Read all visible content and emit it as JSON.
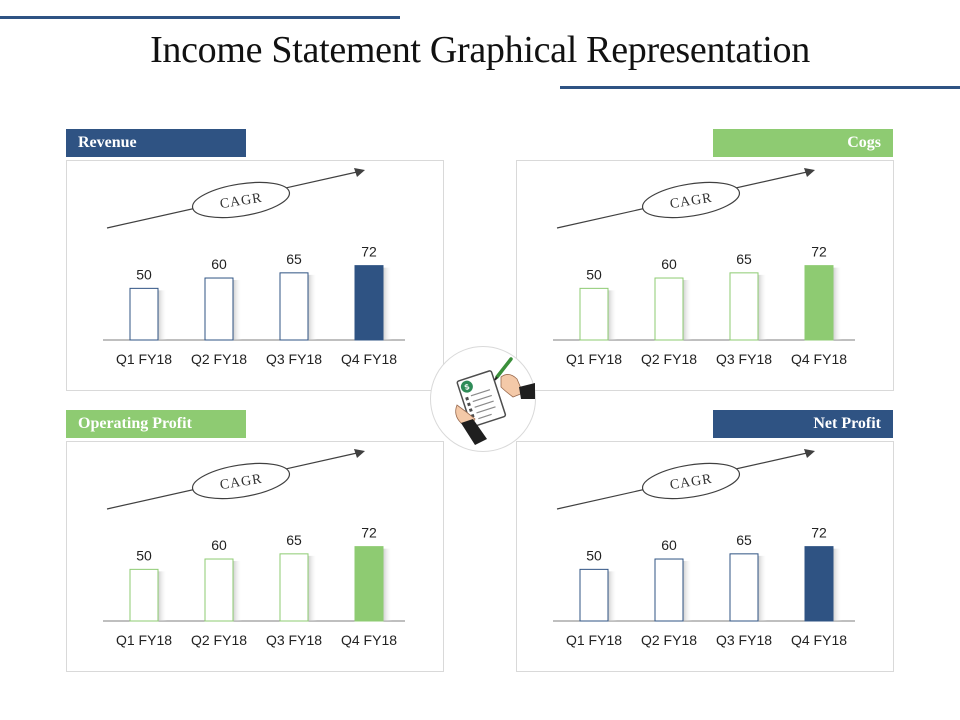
{
  "title": "Income Statement Graphical Representation",
  "colors": {
    "blue": "#2f5383",
    "green": "#8ecb72"
  },
  "panels": [
    {
      "label": "Revenue",
      "label_color": "#2f5383",
      "label_side": "left",
      "accent": "#2f5383",
      "chart_data": {
        "type": "bar",
        "categories": [
          "Q1 FY18",
          "Q2 FY18",
          "Q3 FY18",
          "Q4 FY18"
        ],
        "values": [
          50,
          60,
          65,
          72
        ],
        "annotation": "CAGR",
        "highlight_last": true
      }
    },
    {
      "label": "Cogs",
      "label_color": "#8ecb72",
      "label_side": "right",
      "accent": "#8ecb72",
      "chart_data": {
        "type": "bar",
        "categories": [
          "Q1 FY18",
          "Q2 FY18",
          "Q3 FY18",
          "Q4 FY18"
        ],
        "values": [
          50,
          60,
          65,
          72
        ],
        "annotation": "CAGR",
        "highlight_last": true
      }
    },
    {
      "label": "Operating Profit",
      "label_color": "#8ecb72",
      "label_side": "left",
      "accent": "#8ecb72",
      "chart_data": {
        "type": "bar",
        "categories": [
          "Q1 FY18",
          "Q2 FY18",
          "Q3 FY18",
          "Q4 FY18"
        ],
        "values": [
          50,
          60,
          65,
          72
        ],
        "annotation": "CAGR",
        "highlight_last": true
      }
    },
    {
      "label": "Net Profit",
      "label_color": "#2f5383",
      "label_side": "right",
      "accent": "#2f5383",
      "chart_data": {
        "type": "bar",
        "categories": [
          "Q1 FY18",
          "Q2 FY18",
          "Q3 FY18",
          "Q4 FY18"
        ],
        "values": [
          50,
          60,
          65,
          72
        ],
        "annotation": "CAGR",
        "highlight_last": true
      }
    }
  ],
  "center_icon": "hand-signing-document-icon"
}
